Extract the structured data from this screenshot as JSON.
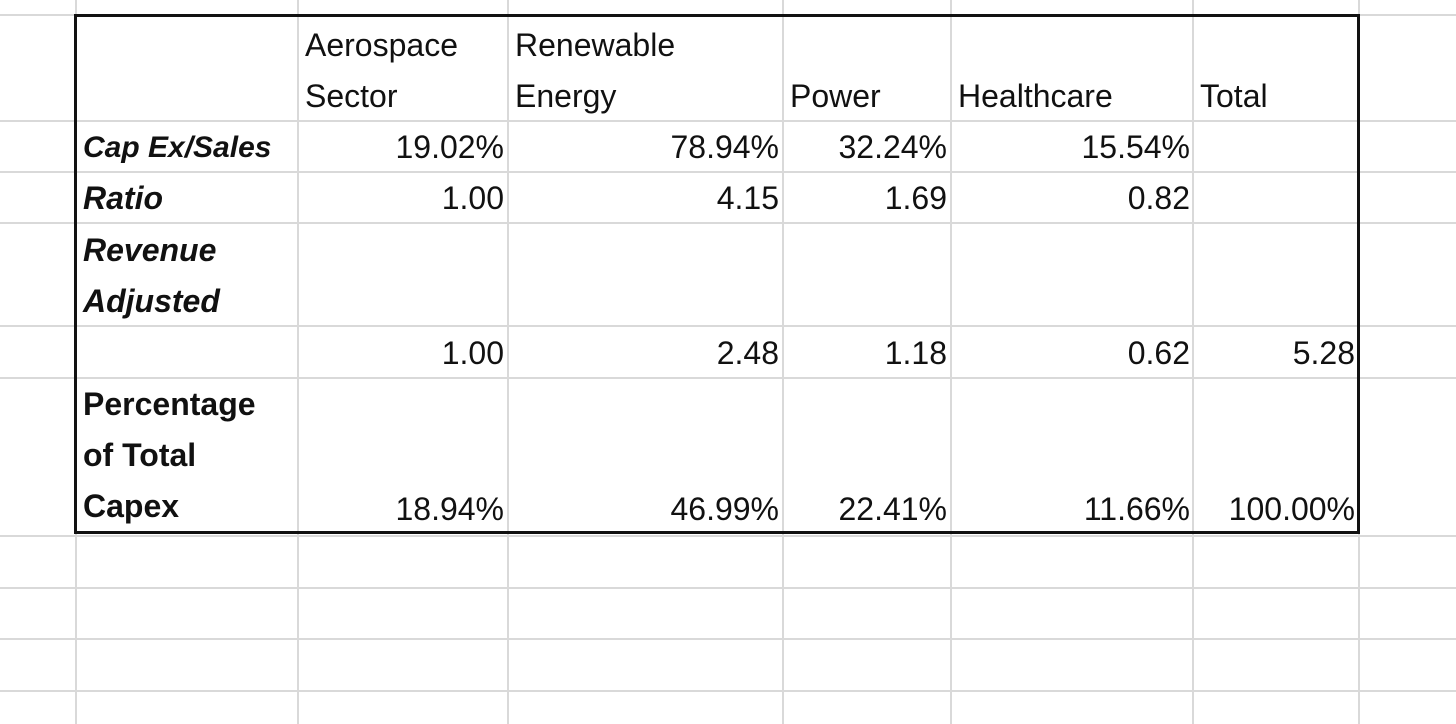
{
  "headers": {
    "aerospace": [
      "Aerospace",
      "Sector"
    ],
    "renewable": [
      "Renewable",
      "Energy"
    ],
    "power": "Power",
    "healthcare": "Healthcare",
    "total": "Total"
  },
  "rows": {
    "capex_sales": {
      "label": "Cap Ex/Sales",
      "aerospace": "19.02%",
      "renewable": "78.94%",
      "power": "32.24%",
      "healthcare": "15.54%",
      "total": ""
    },
    "ratio": {
      "label": "Ratio",
      "aerospace": "1.00",
      "renewable": "4.15",
      "power": "1.69",
      "healthcare": "0.82",
      "total": ""
    },
    "revenue_adjusted": {
      "label": [
        "Revenue",
        "Adjusted"
      ]
    },
    "revenue_values": {
      "aerospace": "1.00",
      "renewable": "2.48",
      "power": "1.18",
      "healthcare": "0.62",
      "total": "5.28"
    },
    "percentage": {
      "label": [
        "Percentage",
        "of Total",
        "Capex"
      ],
      "aerospace": "18.94%",
      "renewable": "46.99%",
      "power": "22.41%",
      "healthcare": "11.66%",
      "total": "100.00%"
    }
  }
}
